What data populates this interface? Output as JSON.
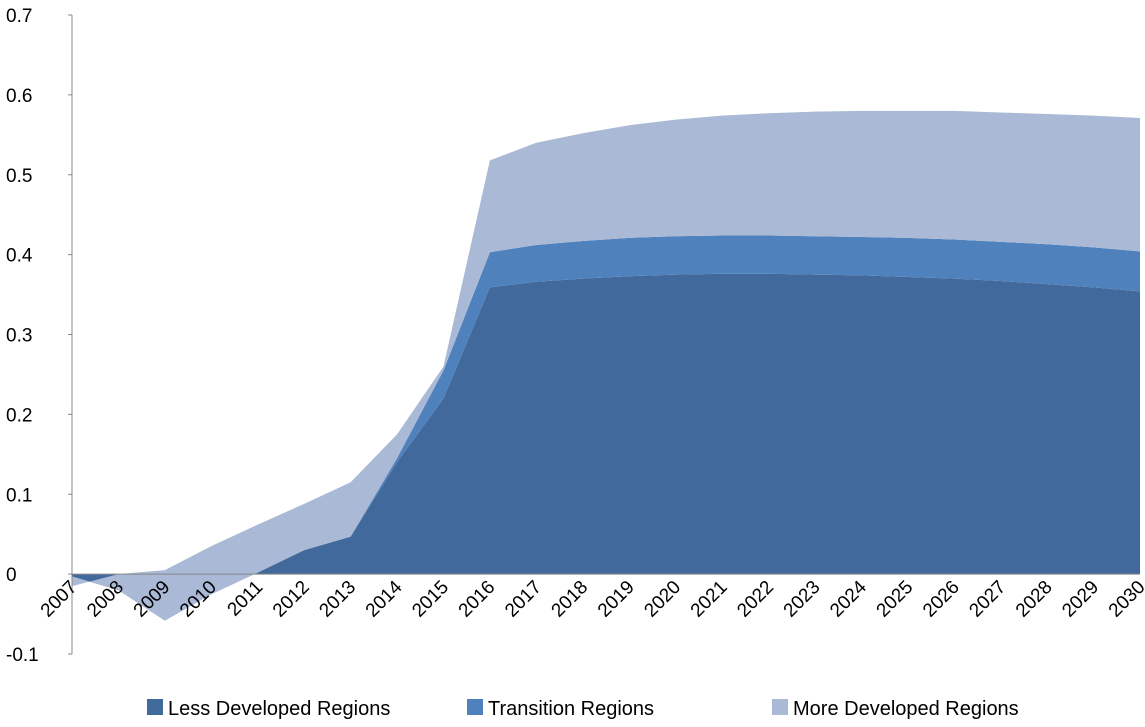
{
  "chart_data": {
    "type": "stacked_area",
    "categories": [
      "2007",
      "2008",
      "2009",
      "2010",
      "2011",
      "2012",
      "2013",
      "2014",
      "2015",
      "2016",
      "2017",
      "2018",
      "2019",
      "2020",
      "2021",
      "2022",
      "2023",
      "2024",
      "2025",
      "2026",
      "2027",
      "2028",
      "2029",
      "2030"
    ],
    "series": [
      {
        "name": "Less Developed Regions",
        "color": "#41699b",
        "values": [
          -0.003,
          -0.02,
          -0.058,
          -0.025,
          0.002,
          0.03,
          0.047,
          0.14,
          0.22,
          0.359,
          0.366,
          0.37,
          0.373,
          0.375,
          0.376,
          0.376,
          0.375,
          0.374,
          0.372,
          0.37,
          0.367,
          0.363,
          0.359,
          0.354
        ]
      },
      {
        "name": "Transition Regions",
        "color": "#4f81bd",
        "values": [
          0,
          0,
          0,
          0,
          0,
          0,
          0,
          0.005,
          0.035,
          0.044,
          0.046,
          0.047,
          0.048,
          0.048,
          0.048,
          0.048,
          0.048,
          0.048,
          0.049,
          0.049,
          0.049,
          0.05,
          0.05,
          0.05
        ]
      },
      {
        "name": "More Developed Regions",
        "color": "#aab9d6",
        "values": [
          -0.012,
          0.02,
          0.063,
          0.06,
          0.06,
          0.058,
          0.068,
          0.03,
          0.005,
          0.115,
          0.128,
          0.135,
          0.141,
          0.146,
          0.15,
          0.153,
          0.156,
          0.158,
          0.159,
          0.161,
          0.162,
          0.163,
          0.165,
          0.167
        ]
      }
    ],
    "ylim": [
      -0.1,
      0.7
    ],
    "yticks": [
      -0.1,
      0,
      0.1,
      0.2,
      0.3,
      0.4,
      0.5,
      0.6,
      0.7
    ],
    "grid": false,
    "legend": "bottom"
  }
}
